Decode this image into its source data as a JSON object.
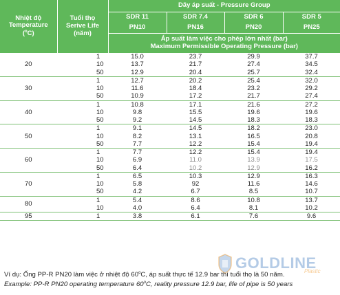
{
  "header": {
    "temp_title": "Nhiệt độ Temperature (°C)",
    "temp_vi": "Nhiệt độ",
    "temp_en": "Temperature",
    "temp_unit": "(",
    "temp_unit_sup": "o",
    "temp_unit_end": "C)",
    "life_vi": "Tuổi thọ",
    "life_en": "Serive Life",
    "life_unit": "(năm)",
    "group_title": "Dãy áp suất - Pressure Group",
    "sdr": [
      "SDR 11",
      "SDR 7.4",
      "SDR 6",
      "SDR 5"
    ],
    "pn": [
      "PN10",
      "PN16",
      "PN20",
      "PN25"
    ],
    "pressure_vi": "Áp suất làm việc cho phép lớn nhất (bar)",
    "pressure_en": "Maximum Permissible Operating Pressure (bar)"
  },
  "groups": [
    {
      "temp": "20",
      "rows": [
        {
          "life": "1",
          "v": [
            "15.0",
            "23.7",
            "29.9",
            "37.7"
          ]
        },
        {
          "life": "10",
          "v": [
            "13.7",
            "21.7",
            "27.4",
            "34.5"
          ]
        },
        {
          "life": "50",
          "v": [
            "12.9",
            "20.4",
            "25.7",
            "32.4"
          ]
        }
      ]
    },
    {
      "temp": "30",
      "rows": [
        {
          "life": "1",
          "v": [
            "12.7",
            "20.2",
            "25.4",
            "32.0"
          ]
        },
        {
          "life": "10",
          "v": [
            "11.6",
            "18.4",
            "23.2",
            "29.2"
          ]
        },
        {
          "life": "50",
          "v": [
            "10.9",
            "17.2",
            "21.7",
            "27.4"
          ]
        }
      ]
    },
    {
      "temp": "40",
      "rows": [
        {
          "life": "1",
          "v": [
            "10.8",
            "17.1",
            "21.6",
            "27.2"
          ]
        },
        {
          "life": "10",
          "v": [
            "9.8",
            "15.5",
            "19.6",
            "19.6"
          ]
        },
        {
          "life": "50",
          "v": [
            "9.2",
            "14.5",
            "18.3",
            "18.3"
          ]
        }
      ]
    },
    {
      "temp": "50",
      "rows": [
        {
          "life": "1",
          "v": [
            "9.1",
            "14.5",
            "18.2",
            "23.0"
          ]
        },
        {
          "life": "10",
          "v": [
            "8.2",
            "13.1",
            "16.5",
            "20.8"
          ]
        },
        {
          "life": "50",
          "v": [
            "7.7",
            "12.2",
            "15.4",
            "19.4"
          ]
        }
      ]
    },
    {
      "temp": "60",
      "rows": [
        {
          "life": "1",
          "v": [
            "7.7",
            "12.2",
            "15.4",
            "19.4"
          ]
        },
        {
          "life": "10",
          "v": [
            "6.9",
            "11.0",
            "13.9",
            "17.5"
          ]
        },
        {
          "life": "50",
          "v": [
            "6.4",
            "10.2",
            "12.9",
            "16.2"
          ]
        }
      ]
    },
    {
      "temp": "70",
      "rows": [
        {
          "life": "1",
          "v": [
            "6.5",
            "10.3",
            "12.9",
            "16.3"
          ]
        },
        {
          "life": "10",
          "v": [
            "5.8",
            "92",
            "11.6",
            "14.6"
          ]
        },
        {
          "life": "50",
          "v": [
            "4.2",
            "6.7",
            "8.5",
            "10.7"
          ]
        }
      ]
    },
    {
      "temp": "80",
      "rows": [
        {
          "life": "1",
          "v": [
            "5.4",
            "8.6",
            "10.8",
            "13.7"
          ]
        },
        {
          "life": "10",
          "v": [
            "4.0",
            "6.4",
            "8.1",
            "10.2"
          ]
        }
      ]
    },
    {
      "temp": "95",
      "rows": [
        {
          "life": "1",
          "v": [
            "3.8",
            "6.1",
            "7.6",
            "9.6"
          ]
        }
      ]
    }
  ],
  "notes": {
    "vi_prefix": "Ví dụ: Ống PP-R PN20 làm việc ở nhiệt độ 60",
    "vi_suffix": "C, áp suất thực tế 12.9 bar thì tuổi thọ là 50 năm.",
    "en_prefix": "Example: PP-R PN20 operating temperature 60",
    "en_suffix": "C, reality pressure 12.9 bar, life of pipe is 50 years",
    "degree": "o"
  },
  "logo": {
    "text": "GOLDLINE",
    "sub": "Plastic",
    "colors": {
      "brand": "#588cc8",
      "accent": "#f0a03c"
    }
  },
  "colors": {
    "header_bg": "#5fb85a",
    "divider": "#7bbf72"
  }
}
